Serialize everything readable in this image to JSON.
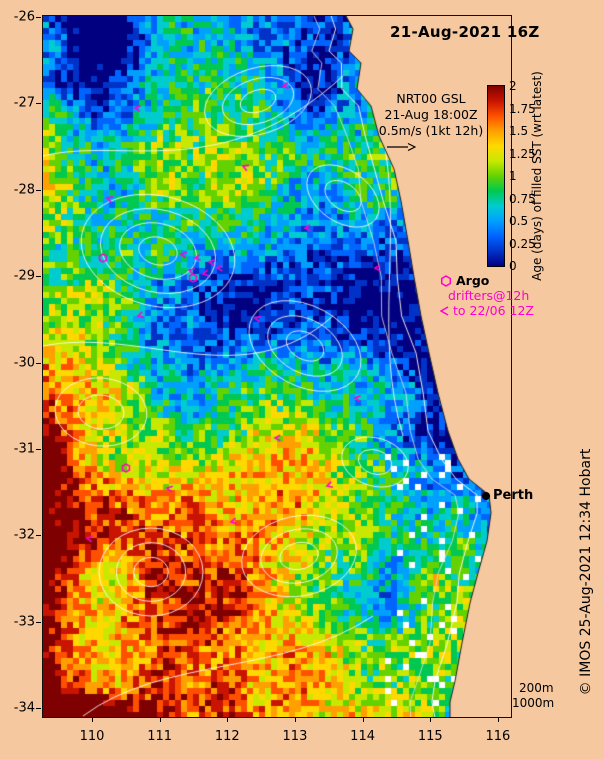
{
  "figure": {
    "title": "21-Aug-2021 16Z",
    "info_lines": [
      "NRT00 GSL",
      "21-Aug 18:00Z",
      "0.5m/s (1kt 12h)"
    ],
    "credit": "© IMOS 25-Aug-2021 12:34 Hobart"
  },
  "colorbar": {
    "label": "Age (days) of filled SST (wrt latest)",
    "tick_labels": [
      "2",
      "1.75",
      "1.5",
      "1.25",
      "1",
      "0.75",
      "0.5",
      "0.25",
      "0"
    ],
    "colors_top_to_bottom": [
      "#7f0000",
      "#c81400",
      "#ff5000",
      "#ffa000",
      "#ffd800",
      "#c8e800",
      "#64d200",
      "#00c850",
      "#00ccd0",
      "#00a0ff",
      "#0064ff",
      "#0032c8",
      "#000080"
    ]
  },
  "legend": {
    "argo_label": "Argo",
    "drifters_line1": "drifters@12h",
    "drifters_line2": "to 22/06 12Z",
    "marker_color": "#ff00cc"
  },
  "map": {
    "city_label": "Perth",
    "depth_labels": [
      "200m",
      "1000m"
    ],
    "land_color": "#f5c8a0"
  },
  "axes": {
    "x_tick_labels": [
      "110",
      "111",
      "112",
      "113",
      "114",
      "115",
      "116"
    ],
    "y_tick_labels": [
      "-26",
      "-27",
      "-28",
      "-29",
      "-30",
      "-31",
      "-32",
      "-33",
      "-34"
    ]
  },
  "chart_data": {
    "type": "heatmap",
    "title": "21-Aug-2021 16Z",
    "x_ticks": [
      110,
      111,
      112,
      113,
      114,
      115,
      116
    ],
    "y_ticks": [
      -26,
      -27,
      -28,
      -29,
      -30,
      -31,
      -32,
      -33,
      -34
    ],
    "value_label": "Age (days) of filled SST (wrt latest)",
    "value_range": [
      0,
      2
    ],
    "notes": "SST age raster off Western Australia: low age (dark blue) offshore north and along coast, high age (orange/dark red) in the southwest; white sea-level contour eddies; magenta Argo float and drifter markers; Perth marked on coast."
  }
}
